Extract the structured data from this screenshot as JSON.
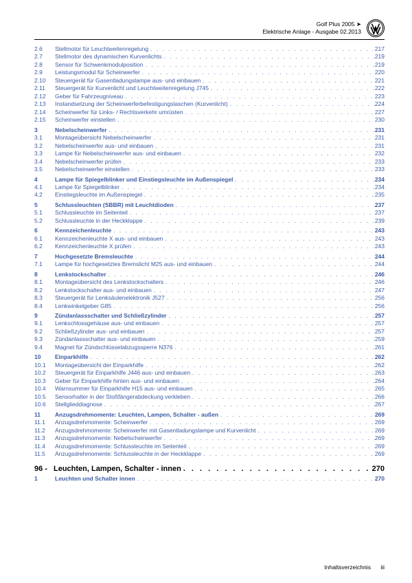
{
  "header": {
    "model": "Golf Plus 2005 ➤",
    "subtitle": "Elektrische Anlage - Ausgabe 02.2013"
  },
  "link_color": "#3b5ba5",
  "entries": [
    {
      "n": "2.6",
      "t": "Stellmotor für Leuchtweitenregelung",
      "p": "217",
      "lvl": 2
    },
    {
      "n": "2.7",
      "t": "Stellmotor des dynamischen Kurvenlichts",
      "p": "219",
      "lvl": 2
    },
    {
      "n": "2.8",
      "t": "Sensor für Schwenkmodulposition",
      "p": "219",
      "lvl": 2
    },
    {
      "n": "2.9",
      "t": "Leistungsmodul für Scheinwerfer",
      "p": "220",
      "lvl": 2
    },
    {
      "n": "2.10",
      "t": "Steuergerät für Gasentladungslampe aus- und einbauen",
      "p": "221",
      "lvl": 2
    },
    {
      "n": "2.11",
      "t": "Steuergerät für Kurvenlicht und Leuchtweitenregelung J745",
      "p": "222",
      "lvl": 2
    },
    {
      "n": "2.12",
      "t": "Geber für Fahrzeugniveau",
      "p": "223",
      "lvl": 2
    },
    {
      "n": "2.13",
      "t": "Instandsetzung der Scheinwerferbefestigungslaschen (Kurvenlicht)",
      "p": "224",
      "lvl": 2
    },
    {
      "n": "2.14",
      "t": "Scheinwerfer für Links- / Rechtsverkehr umrüsten",
      "p": "227",
      "lvl": 2
    },
    {
      "n": "2.15",
      "t": "Scheinwerfer einstellen",
      "p": "230",
      "lvl": 2
    },
    {
      "n": "3",
      "t": "Nebelscheinwerfer",
      "p": "231",
      "lvl": 1
    },
    {
      "n": "3.1",
      "t": "Montageübersicht Nebelscheinwerfer",
      "p": "231",
      "lvl": 2
    },
    {
      "n": "3.2",
      "t": "Nebelscheinwerfer aus- und einbauen",
      "p": "231",
      "lvl": 2
    },
    {
      "n": "3.3",
      "t": "Lampe für Nebelscheinwerfer aus- und einbauen",
      "p": "232",
      "lvl": 2
    },
    {
      "n": "3.4",
      "t": "Nebelscheinwerfer prüfen",
      "p": "233",
      "lvl": 2
    },
    {
      "n": "3.5",
      "t": "Nebelscheinwerfer einstellen",
      "p": "233",
      "lvl": 2
    },
    {
      "n": "4",
      "t": "Lampe für Spiegelblinker und Einstiegsleuchte im Außenspiegel",
      "p": "234",
      "lvl": 1
    },
    {
      "n": "4.1",
      "t": "Lampe für Spiegelblinker",
      "p": "234",
      "lvl": 2
    },
    {
      "n": "4.2",
      "t": "Einstiegsleuchte im Außenspiegel",
      "p": "235",
      "lvl": 2
    },
    {
      "n": "5",
      "t": "Schlussleuchten (SBBR) mit Leuchtdioden",
      "p": "237",
      "lvl": 1
    },
    {
      "n": "5.1",
      "t": "Schlussleuchte im Seitenteil",
      "p": "237",
      "lvl": 2
    },
    {
      "n": "5.2",
      "t": "Schlussleuchte in der Heckklappe",
      "p": "239",
      "lvl": 2
    },
    {
      "n": "6",
      "t": "Kennzeichenleuchte",
      "p": "243",
      "lvl": 1
    },
    {
      "n": "6.1",
      "t": "Kennzeichenleuchte X aus- und einbauen",
      "p": "243",
      "lvl": 2
    },
    {
      "n": "6.2",
      "t": "Kennzeichenleuchte X prüfen",
      "p": "243",
      "lvl": 2
    },
    {
      "n": "7",
      "t": "Hochgesetzte Bremsleuchte",
      "p": "244",
      "lvl": 1
    },
    {
      "n": "7.1",
      "t": "Lampe für hochgesetztes Bremslicht M25 aus- und einbauen",
      "p": "244",
      "lvl": 2
    },
    {
      "n": "8",
      "t": "Lenkstockschalter",
      "p": "246",
      "lvl": 1
    },
    {
      "n": "8.1",
      "t": "Montageübersicht des Lenkstockschalters",
      "p": "246",
      "lvl": 2
    },
    {
      "n": "8.2",
      "t": "Lenkstockschalter aus- und einbauen",
      "p": "247",
      "lvl": 2
    },
    {
      "n": "8.3",
      "t": "Steuergerät für Lenksäulenelektronik J527",
      "p": "256",
      "lvl": 2
    },
    {
      "n": "8.4",
      "t": "Lenkwinkelgeber G85",
      "p": "256",
      "lvl": 2
    },
    {
      "n": "9",
      "t": "Zündanlassschalter und Schließzylinder",
      "p": "257",
      "lvl": 1
    },
    {
      "n": "9.1",
      "t": "Lenkschlossgehäuse aus- und einbauen",
      "p": "257",
      "lvl": 2
    },
    {
      "n": "9.2",
      "t": "Schließzylinder aus- und einbauen",
      "p": "257",
      "lvl": 2
    },
    {
      "n": "9.3",
      "t": "Zündanlassschalter aus- und einbauen",
      "p": "259",
      "lvl": 2
    },
    {
      "n": "9.4",
      "t": "Magnet für Zündschlüsselabzugssperre N376",
      "p": "261",
      "lvl": 2
    },
    {
      "n": "10",
      "t": "Einparkhilfe",
      "p": "262",
      "lvl": 1
    },
    {
      "n": "10.1",
      "t": "Montageübersicht der Einparkhilfe",
      "p": "262",
      "lvl": 2
    },
    {
      "n": "10.2",
      "t": "Steuergerät für Einparkhilfe J446 aus- und einbauen",
      "p": "263",
      "lvl": 2
    },
    {
      "n": "10.3",
      "t": "Geber für Einparkhilfe hinten aus- und einbauen",
      "p": "264",
      "lvl": 2
    },
    {
      "n": "10.4",
      "t": "Warnsummer für Einparkhilfe H15 aus- und einbauen",
      "p": "265",
      "lvl": 2
    },
    {
      "n": "10.5",
      "t": "Sensorhalter in der Stoßfängerabdeckung verkleben",
      "p": "266",
      "lvl": 2
    },
    {
      "n": "10.6",
      "t": "Stellglieddiagnose",
      "p": "267",
      "lvl": 2
    },
    {
      "n": "11",
      "t": "Anzugsdrehmomente: Leuchten, Lampen, Schalter - außen",
      "p": "269",
      "lvl": 1
    },
    {
      "n": "11.1",
      "t": "Anzugsdrehmomente: Scheinwerfer",
      "p": "269",
      "lvl": 2
    },
    {
      "n": "11.2",
      "t": "Anzugsdrehmomente: Scheinwerfer mit Gasentladungslampe und Kurvenlicht",
      "p": "269",
      "lvl": 2
    },
    {
      "n": "11.3",
      "t": "Anzugsdrehmomente: Nebelscheinwerfer",
      "p": "269",
      "lvl": 2
    },
    {
      "n": "11.4",
      "t": "Anzugsdrehmomente: Schlussleuchte im Seitenteil",
      "p": "269",
      "lvl": 2
    },
    {
      "n": "11.5",
      "t": "Anzugsdrehmomente: Schlussleuchte in der Heckklappe",
      "p": "269",
      "lvl": 2
    }
  ],
  "chapter": {
    "n": "96 -",
    "t": "Leuchten, Lampen, Schalter - innen",
    "p": "270"
  },
  "chapter_sub": [
    {
      "n": "1",
      "t": "Leuchten und Schalter innen",
      "p": "270",
      "lvl": 1
    }
  ],
  "footer": {
    "label": "Inhaltsverzeichnis",
    "page": "iii"
  }
}
